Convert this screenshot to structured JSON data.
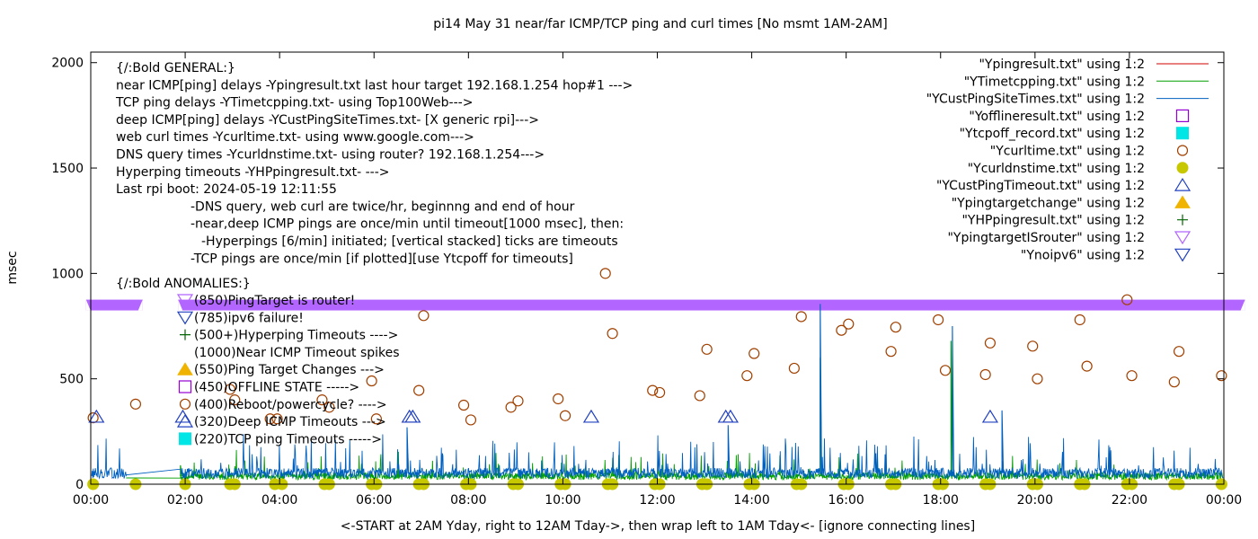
{
  "chart_data": {
    "type": "line",
    "title": "pi14 May 31  near/far ICMP/TCP ping and curl times [No msmt 1AM-2AM]",
    "xlabel": "<-START at 2AM Yday, right to 12AM Tday->, then wrap left to 1AM Tday<- [ignore connecting lines]",
    "ylabel": "msec",
    "xlim": [
      0,
      24
    ],
    "ylim": [
      0,
      2050
    ],
    "x_ticks": [
      {
        "value": 0,
        "label": "00:00"
      },
      {
        "value": 2,
        "label": "02:00"
      },
      {
        "value": 4,
        "label": "04:00"
      },
      {
        "value": 6,
        "label": "06:00"
      },
      {
        "value": 8,
        "label": "08:00"
      },
      {
        "value": 10,
        "label": "10:00"
      },
      {
        "value": 12,
        "label": "12:00"
      },
      {
        "value": 14,
        "label": "14:00"
      },
      {
        "value": 16,
        "label": "16:00"
      },
      {
        "value": 18,
        "label": "18:00"
      },
      {
        "value": 20,
        "label": "20:00"
      },
      {
        "value": 22,
        "label": "22:00"
      },
      {
        "value": 24,
        "label": "00:00"
      }
    ],
    "y_ticks": [
      {
        "value": 0,
        "label": "0"
      },
      {
        "value": 500,
        "label": "500"
      },
      {
        "value": 1000,
        "label": "1000"
      },
      {
        "value": 1500,
        "label": "1500"
      },
      {
        "value": 2000,
        "label": "2000"
      }
    ],
    "legend_position": "top-right",
    "series": [
      {
        "name": "\"Ypingresult.txt\" using 1:2",
        "style": "line",
        "color": "#d00000",
        "values": []
      },
      {
        "name": "\"YTimetcpping.txt\" using 1:2",
        "style": "line",
        "color": "#00a000",
        "profile": {
          "start": 1.9,
          "end": 23.98,
          "base": 38,
          "range": 35,
          "spike_prob": 0.04,
          "spike_range": 110,
          "seed": 7
        },
        "gap": {
          "from": 0.75,
          "to": 1.9
        },
        "notable_points": [
          [
            15.45,
            600
          ],
          [
            18.22,
            680
          ],
          [
            1.9,
            90
          ]
        ]
      },
      {
        "name": "\"YCustPingSiteTimes.txt\" using 1:2",
        "style": "line",
        "color": "#0060c0",
        "profile": {
          "start": 0.02,
          "end": 23.98,
          "base": 52,
          "range": 50,
          "spike_prob": 0.07,
          "spike_range": 170,
          "seed": 13
        },
        "gap": {
          "from": 0.75,
          "to": 1.9
        },
        "notable_points": [
          [
            15.45,
            855
          ],
          [
            18.25,
            750
          ],
          [
            19.3,
            350
          ],
          [
            13.5,
            280
          ],
          [
            6.7,
            270
          ]
        ]
      },
      {
        "name": "\"Yofflineresult.txt\" using 1:2",
        "style": "marker",
        "marker": "square-open",
        "color": "#9400d3",
        "points": []
      },
      {
        "name": "\"Ytcpoff_record.txt\" using 1:2",
        "style": "marker",
        "marker": "square-filled",
        "color": "#00e5e5",
        "points": []
      },
      {
        "name": "\"Ycurltime.txt\" using 1:2",
        "style": "marker",
        "marker": "circle-open",
        "color": "#a04000",
        "points": [
          [
            0.05,
            315
          ],
          [
            0.95,
            380
          ],
          [
            2.95,
            450
          ],
          [
            3.05,
            400
          ],
          [
            3.8,
            310
          ],
          [
            3.95,
            310
          ],
          [
            4.9,
            400
          ],
          [
            5.05,
            365
          ],
          [
            5.95,
            490
          ],
          [
            6.05,
            310
          ],
          [
            6.95,
            445
          ],
          [
            7.05,
            800
          ],
          [
            7.9,
            375
          ],
          [
            8.05,
            305
          ],
          [
            8.9,
            365
          ],
          [
            9.05,
            395
          ],
          [
            9.9,
            405
          ],
          [
            10.05,
            325
          ],
          [
            10.9,
            1000
          ],
          [
            11.05,
            715
          ],
          [
            11.9,
            445
          ],
          [
            12.05,
            435
          ],
          [
            12.9,
            420
          ],
          [
            13.05,
            640
          ],
          [
            13.9,
            515
          ],
          [
            14.05,
            620
          ],
          [
            14.9,
            550
          ],
          [
            15.05,
            795
          ],
          [
            15.9,
            730
          ],
          [
            16.05,
            760
          ],
          [
            16.95,
            630
          ],
          [
            17.05,
            745
          ],
          [
            17.95,
            780
          ],
          [
            18.1,
            540
          ],
          [
            18.95,
            520
          ],
          [
            19.05,
            670
          ],
          [
            19.95,
            655
          ],
          [
            20.05,
            500
          ],
          [
            20.95,
            780
          ],
          [
            21.1,
            560
          ],
          [
            21.95,
            875
          ],
          [
            22.05,
            515
          ],
          [
            22.95,
            485
          ],
          [
            23.05,
            630
          ],
          [
            23.95,
            515
          ]
        ]
      },
      {
        "name": "\"Ycurldnstime.txt\" using 1:2",
        "style": "marker",
        "marker": "circle-filled",
        "color": "#c8c800",
        "points": [
          [
            0.05,
            0
          ],
          [
            0.95,
            0
          ],
          [
            2.0,
            0
          ],
          [
            2.95,
            0
          ],
          [
            3.05,
            0
          ],
          [
            3.9,
            0
          ],
          [
            4.05,
            0
          ],
          [
            4.95,
            0
          ],
          [
            5.05,
            0
          ],
          [
            5.95,
            0
          ],
          [
            6.05,
            0
          ],
          [
            6.95,
            0
          ],
          [
            7.05,
            0
          ],
          [
            7.95,
            0
          ],
          [
            8.05,
            0
          ],
          [
            8.95,
            0
          ],
          [
            9.05,
            0
          ],
          [
            9.95,
            0
          ],
          [
            10.05,
            0
          ],
          [
            10.95,
            0
          ],
          [
            11.05,
            0
          ],
          [
            11.95,
            0
          ],
          [
            12.05,
            0
          ],
          [
            12.95,
            0
          ],
          [
            13.05,
            0
          ],
          [
            13.95,
            0
          ],
          [
            14.05,
            0
          ],
          [
            14.95,
            0
          ],
          [
            15.05,
            0
          ],
          [
            15.95,
            0
          ],
          [
            16.05,
            0
          ],
          [
            16.95,
            0
          ],
          [
            17.05,
            0
          ],
          [
            17.95,
            0
          ],
          [
            18.05,
            0
          ],
          [
            18.95,
            0
          ],
          [
            19.05,
            0
          ],
          [
            19.95,
            0
          ],
          [
            20.05,
            0
          ],
          [
            20.95,
            0
          ],
          [
            21.05,
            0
          ],
          [
            21.95,
            0
          ],
          [
            22.05,
            0
          ],
          [
            22.95,
            0
          ],
          [
            23.05,
            0
          ],
          [
            23.95,
            0
          ]
        ]
      },
      {
        "name": "\"YCustPingTimeout.txt\" using 1:2",
        "style": "marker",
        "marker": "triangle-up-open",
        "color": "#2040c0",
        "points": [
          [
            0.12,
            320
          ],
          [
            1.95,
            320
          ],
          [
            6.75,
            320
          ],
          [
            6.82,
            320
          ],
          [
            10.6,
            320
          ],
          [
            13.45,
            320
          ],
          [
            13.55,
            320
          ],
          [
            19.05,
            320
          ]
        ]
      },
      {
        "name": "\"Ypingtargetchange\" using 1:2",
        "style": "marker",
        "marker": "triangle-up-filled",
        "color": "#f0b400",
        "points": []
      },
      {
        "name": "\"YHPpingresult.txt\" using 1:2",
        "style": "marker",
        "marker": "plus",
        "color": "#006400",
        "points": []
      },
      {
        "name": "\"YpingtargetISrouter\" using 1:2",
        "style": "band",
        "marker": "triangle-down-open",
        "color": "#b266ff",
        "value": 850,
        "intervals": [
          [
            -0.1,
            1.1
          ],
          [
            1.85,
            24.45
          ]
        ]
      },
      {
        "name": "\"Ynoipv6\" using 1:2",
        "style": "marker",
        "marker": "triangle-down-open",
        "color": "#2040c0",
        "points": []
      }
    ],
    "annotations": {
      "general": [
        "{/:Bold GENERAL:}",
        "near ICMP[ping] delays -Ypingresult.txt last hour target 192.168.1.254 hop#1 --->",
        "TCP ping delays -YTimetcpping.txt- using Top100Web--->",
        "deep ICMP[ping] delays -YCustPingSiteTimes.txt- [X generic rpi]--->",
        "web curl times -Ycurltime.txt- using www.google.com--->",
        "DNS query times -Ycurldnstime.txt- using router? 192.168.1.254--->",
        "Hyperping timeouts -YHPpingresult.txt- --->",
        "Last rpi boot: 2024-05-19 12:11:55"
      ],
      "notes": [
        "-DNS query, web curl are twice/hr, beginnng and end of hour",
        "-near,deep ICMP pings are once/min until timeout[1000 msec], then:",
        "-Hyperpings [6/min] initiated; [vertical stacked] ticks are timeouts",
        "-TCP pings are once/min [if plotted][use Ytcpoff for timeouts]"
      ],
      "anomalies_title": "{/:Bold ANOMALIES:}",
      "anomalies": [
        {
          "marker": "triangle-down-open",
          "color": "#b266ff",
          "text": "(850)PingTarget is router!"
        },
        {
          "marker": "triangle-down-open",
          "color": "#2040c0",
          "text": "(785)ipv6 failure!"
        },
        {
          "marker": "plus",
          "color": "#006400",
          "text": "(500+)Hyperping Timeouts ---->"
        },
        {
          "marker": "none",
          "color": "#000000",
          "text": "(1000)Near ICMP Timeout spikes"
        },
        {
          "marker": "triangle-up-filled",
          "color": "#f0b400",
          "text": "(550)Ping Target Changes --->"
        },
        {
          "marker": "square-open",
          "color": "#9400d3",
          "text": "(450)OFFLINE STATE ----->"
        },
        {
          "marker": "circle-open",
          "color": "#a04000",
          "text": "(400)Reboot/powercycle? ---->"
        },
        {
          "marker": "triangle-up-open",
          "color": "#2040c0",
          "text": "(320)Deep ICMP Timeouts --->"
        },
        {
          "marker": "square-filled",
          "color": "#00e5e5",
          "text": "(220)TCP ping Timeouts ----->"
        }
      ]
    }
  }
}
